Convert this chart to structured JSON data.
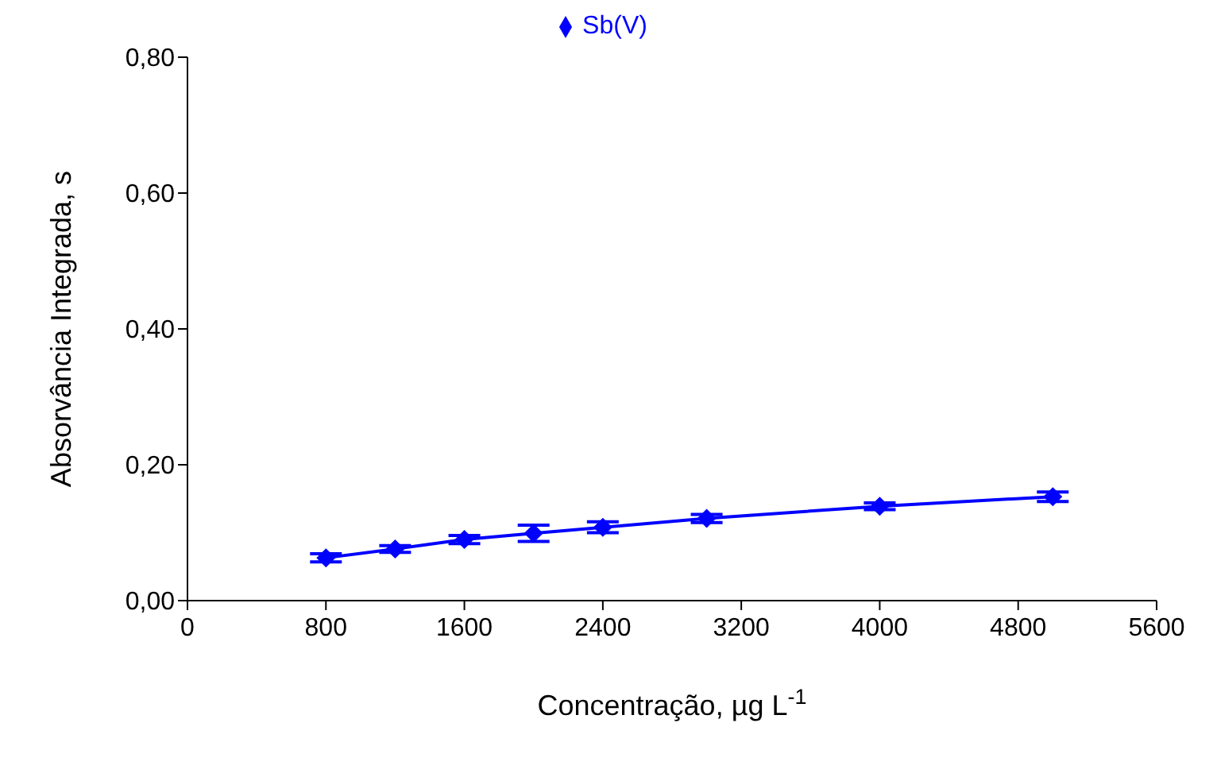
{
  "chart_data": {
    "type": "line",
    "xlabel": "Concentração, µg L$^{-1}$",
    "ylabel": "Absorvância Integrada, s",
    "x": [
      800,
      1200,
      1600,
      2000,
      2400,
      3000,
      4000,
      5000
    ],
    "series": [
      {
        "name": "Sb(V)",
        "color": "#0000ff",
        "values": [
          0.063,
          0.076,
          0.09,
          0.099,
          0.108,
          0.121,
          0.139,
          0.153
        ],
        "errors": [
          0.006,
          0.005,
          0.006,
          0.012,
          0.008,
          0.006,
          0.005,
          0.007
        ]
      }
    ],
    "xlim": [
      0,
      5600
    ],
    "xticks": [
      0,
      800,
      1600,
      2400,
      3200,
      4000,
      4800,
      5600
    ],
    "ylim": [
      0,
      0.8
    ],
    "yticks": [
      {
        "value": 0,
        "label": "0,00"
      },
      {
        "value": 0.2,
        "label": "0,20"
      },
      {
        "value": 0.4,
        "label": "0,40"
      },
      {
        "value": 0.6,
        "label": "0,60"
      },
      {
        "value": 0.8,
        "label": "0,80"
      }
    ],
    "marker": "diamond",
    "legend": "top",
    "grid": false
  }
}
